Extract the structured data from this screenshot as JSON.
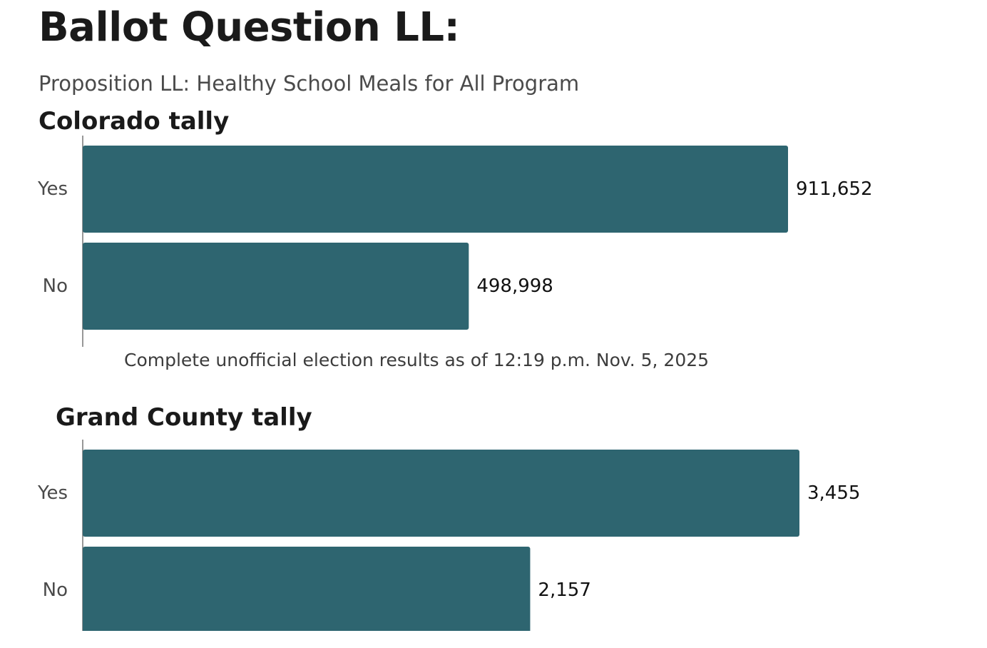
{
  "header": {
    "title": "Ballot Question LL:",
    "subtitle": "Proposition LL: Healthy School Meals for All Program"
  },
  "chart_data": [
    {
      "type": "bar",
      "orientation": "horizontal",
      "title": "Colorado tally",
      "categories": [
        "Yes",
        "No"
      ],
      "values": [
        911652,
        498998
      ],
      "value_labels": [
        "911,652",
        "498,998"
      ],
      "xlim": [
        0,
        911652
      ],
      "grid": false,
      "bar_color": "#2e6570",
      "note": "Complete unofficial election results as of 12:19 p.m. Nov. 5, 2025"
    },
    {
      "type": "bar",
      "orientation": "horizontal",
      "title": "Grand County tally",
      "categories": [
        "Yes",
        "No"
      ],
      "values": [
        3455,
        2157
      ],
      "value_labels": [
        "3,455",
        "2,157"
      ],
      "xlim": [
        0,
        3455
      ],
      "grid": false,
      "bar_color": "#2e6570"
    }
  ]
}
